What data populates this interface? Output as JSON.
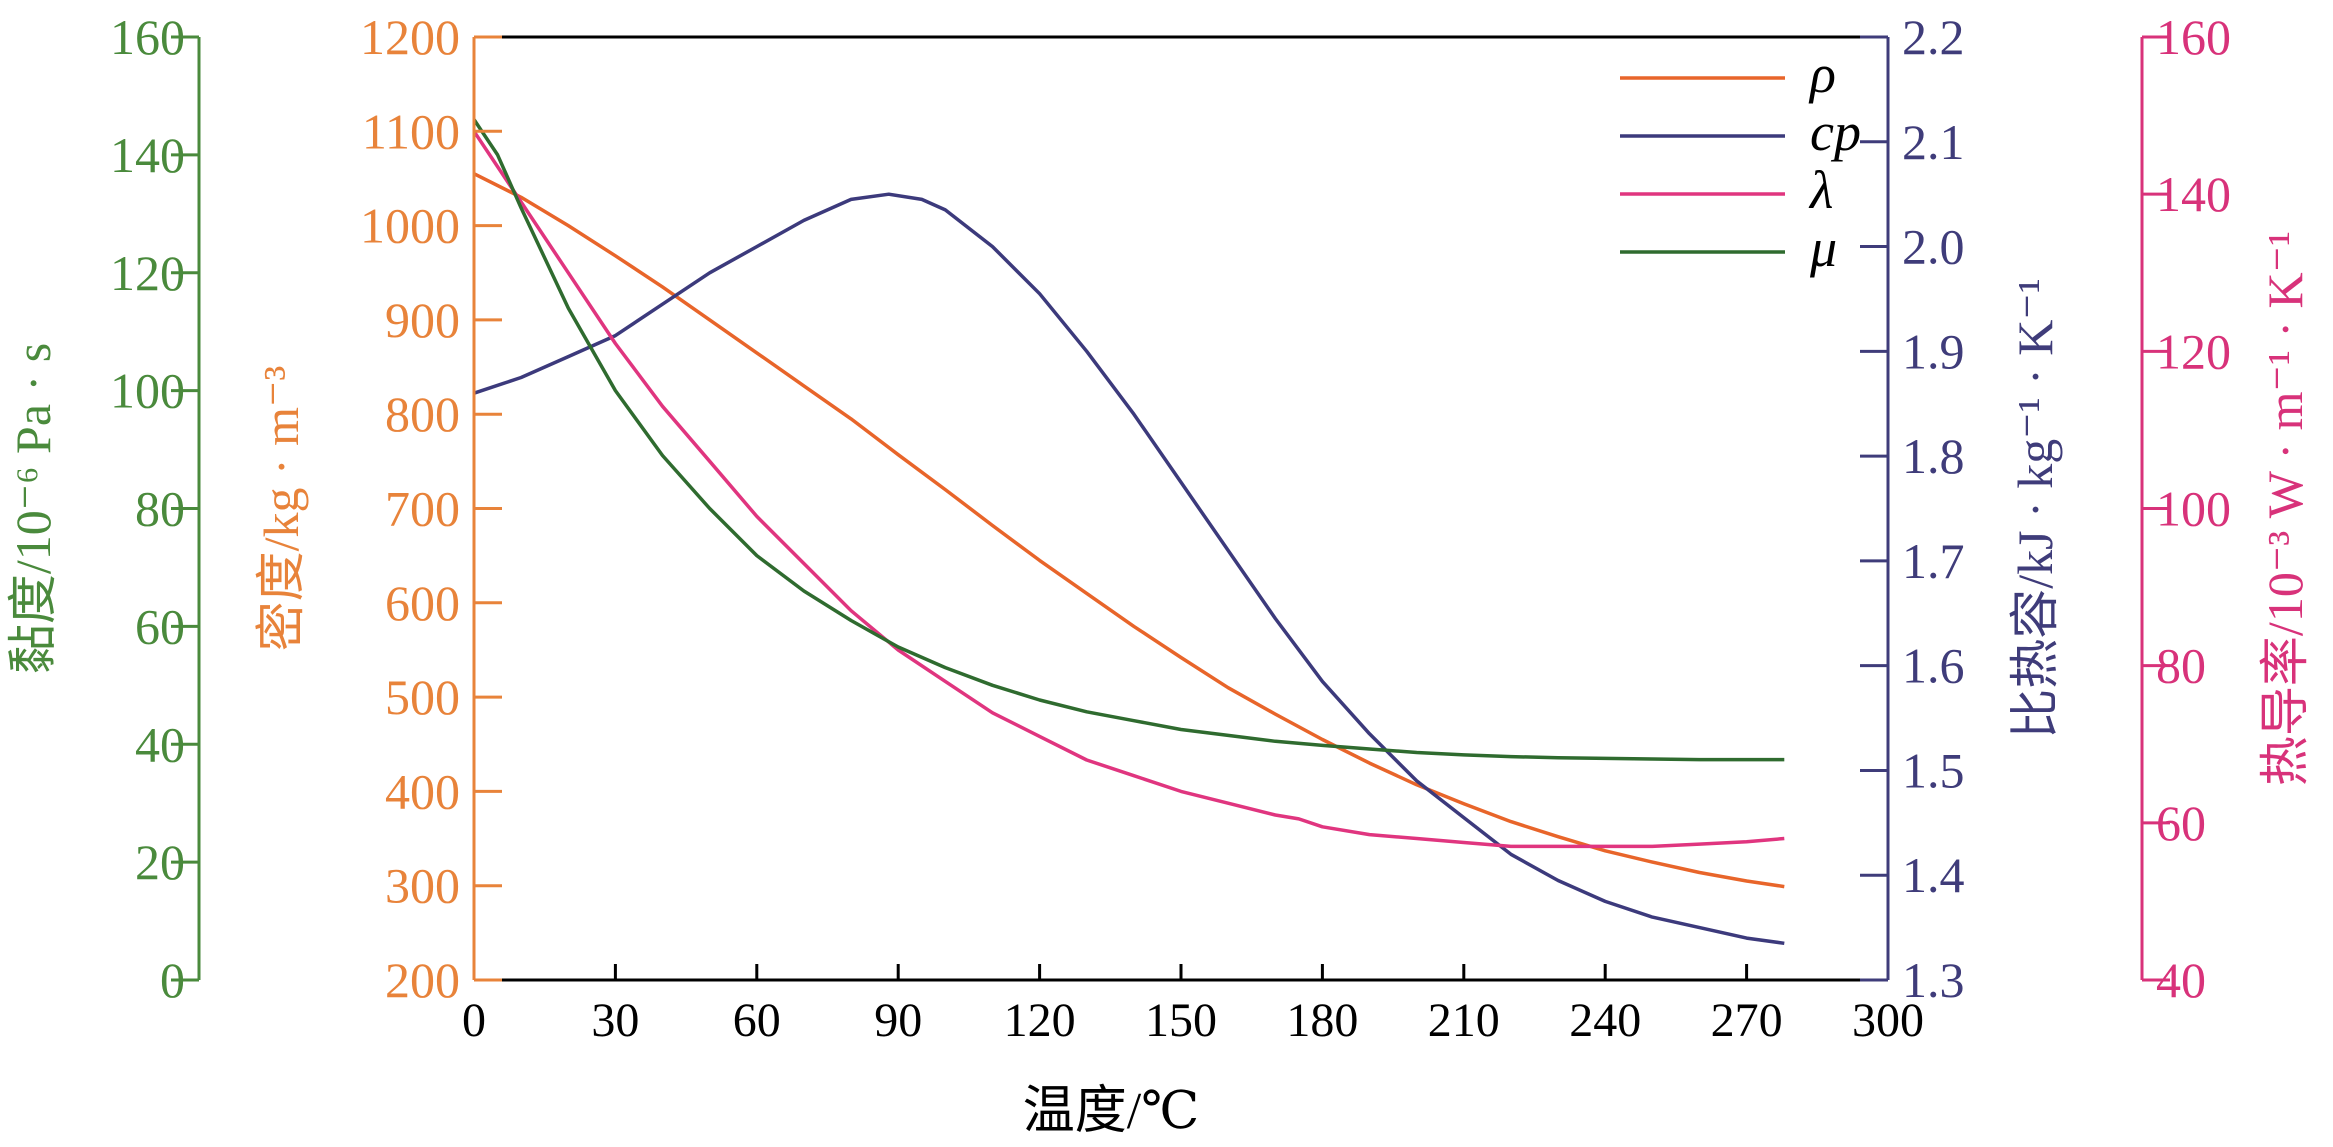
{
  "chart_data": {
    "type": "line",
    "title": "",
    "xlabel": "温度/℃",
    "xlim": [
      0,
      300
    ],
    "x_ticks": [
      "0",
      "30",
      "60",
      "90",
      "120",
      "150",
      "180",
      "210",
      "240",
      "270",
      "300"
    ],
    "grid": false,
    "legend_position": "top-right",
    "axes": [
      {
        "id": "viscosity",
        "side": "left-outer",
        "label": "黏度/10⁻⁶ Pa · s",
        "color": "#4a8a3c",
        "ylim": [
          0,
          160
        ],
        "ticks": [
          "0",
          "20",
          "40",
          "60",
          "80",
          "100",
          "120",
          "140",
          "160"
        ]
      },
      {
        "id": "density",
        "side": "left-inner",
        "label": "密度/kg · m⁻³",
        "color": "#e8833a",
        "ylim": [
          200,
          1200
        ],
        "ticks": [
          "200",
          "300",
          "400",
          "500",
          "600",
          "700",
          "800",
          "900",
          "1000",
          "1100",
          "1200"
        ]
      },
      {
        "id": "cp",
        "side": "right-inner",
        "label": "比热容/kJ · kg⁻¹ · K⁻¹",
        "color": "#3f3c7a",
        "ylim": [
          1.3,
          2.2
        ],
        "ticks": [
          "1.3",
          "1.4",
          "1.5",
          "1.6",
          "1.7",
          "1.8",
          "1.9",
          "2.0",
          "2.1",
          "2.2"
        ]
      },
      {
        "id": "conductivity",
        "side": "right-outer",
        "label": "热导率/10⁻³ W · m⁻¹ · K⁻¹",
        "color": "#d8327a",
        "ylim": [
          40,
          160
        ],
        "ticks": [
          "40",
          "60",
          "80",
          "100",
          "120",
          "140",
          "160"
        ]
      }
    ],
    "series": [
      {
        "name": "ρ",
        "axis": "density",
        "color": "#e8652a",
        "x": [
          0,
          10,
          20,
          30,
          40,
          50,
          60,
          70,
          80,
          90,
          100,
          110,
          120,
          130,
          140,
          150,
          160,
          170,
          180,
          190,
          200,
          210,
          220,
          230,
          240,
          250,
          260,
          270,
          278
        ],
        "y": [
          1055,
          1030,
          1000,
          968,
          935,
          900,
          865,
          830,
          795,
          757,
          720,
          682,
          645,
          610,
          575,
          542,
          510,
          482,
          455,
          430,
          407,
          387,
          368,
          352,
          337,
          325,
          314,
          305,
          299
        ]
      },
      {
        "name": "cp",
        "axis": "cp",
        "color": "#3c3a7c",
        "x": [
          0,
          10,
          20,
          30,
          40,
          50,
          60,
          70,
          80,
          88,
          95,
          100,
          110,
          120,
          130,
          140,
          150,
          160,
          170,
          180,
          190,
          200,
          210,
          220,
          230,
          240,
          250,
          260,
          270,
          278
        ],
        "y": [
          1.86,
          1.875,
          1.895,
          1.915,
          1.945,
          1.975,
          2.0,
          2.025,
          2.045,
          2.05,
          2.045,
          2.035,
          2.0,
          1.955,
          1.9,
          1.84,
          1.775,
          1.71,
          1.645,
          1.585,
          1.535,
          1.49,
          1.455,
          1.42,
          1.395,
          1.375,
          1.36,
          1.35,
          1.34,
          1.335
        ]
      },
      {
        "name": "λ",
        "axis": "conductivity",
        "color": "#e0357f",
        "x": [
          0,
          10,
          20,
          30,
          40,
          50,
          60,
          70,
          80,
          90,
          100,
          110,
          120,
          130,
          140,
          150,
          160,
          170,
          175,
          180,
          190,
          200,
          210,
          220,
          230,
          240,
          250,
          260,
          270,
          278
        ],
        "y": [
          148,
          139,
          130,
          121,
          113,
          106,
          99,
          93,
          87,
          82,
          78,
          74,
          71,
          68,
          66,
          64,
          62.5,
          61,
          60.5,
          59.5,
          58.5,
          58,
          57.5,
          57,
          57,
          57,
          57,
          57.3,
          57.6,
          58
        ]
      },
      {
        "name": "μ",
        "axis": "viscosity",
        "color": "#2f6b2f",
        "x": [
          0,
          5,
          10,
          20,
          30,
          40,
          50,
          60,
          70,
          80,
          90,
          100,
          110,
          120,
          130,
          140,
          150,
          160,
          170,
          180,
          190,
          200,
          210,
          220,
          230,
          240,
          250,
          260,
          270,
          278
        ],
        "y": [
          146,
          140,
          131,
          114,
          100,
          89,
          80,
          72,
          66,
          61,
          56.5,
          53,
          50,
          47.5,
          45.5,
          44,
          42.5,
          41.5,
          40.5,
          39.8,
          39.2,
          38.6,
          38.2,
          37.9,
          37.7,
          37.6,
          37.5,
          37.4,
          37.4,
          37.4
        ]
      }
    ]
  }
}
